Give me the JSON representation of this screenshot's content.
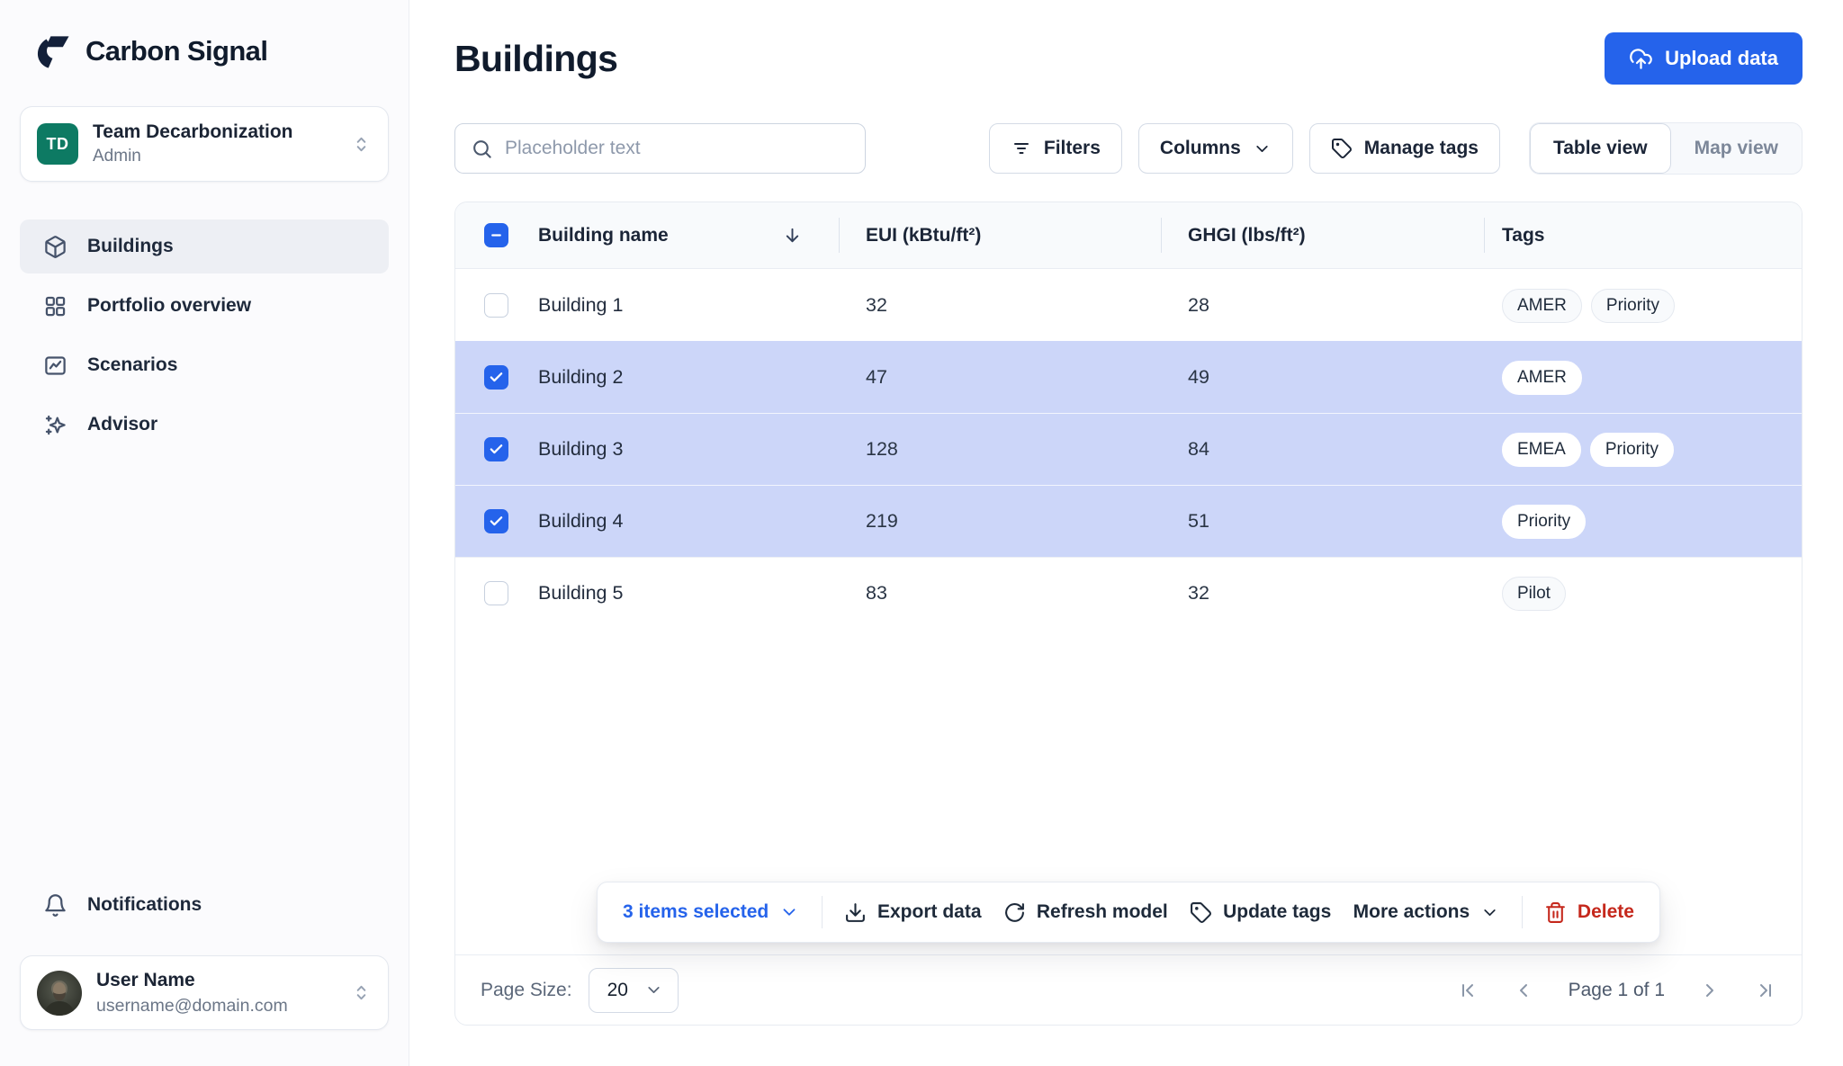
{
  "app": {
    "name": "Carbon Signal",
    "logo_icon": "carbon-signal-mark"
  },
  "sidebar": {
    "team": {
      "initials": "TD",
      "name": "Team Decarbonization",
      "role": "Admin",
      "chevron_icon": "chevrons-up-down"
    },
    "items": [
      {
        "label": "Buildings",
        "icon": "cube",
        "active": true
      },
      {
        "label": "Portfolio overview",
        "icon": "grid",
        "active": false
      },
      {
        "label": "Scenarios",
        "icon": "chart-square",
        "active": false
      },
      {
        "label": "Advisor",
        "icon": "sparkles",
        "active": false
      }
    ],
    "notifications": {
      "label": "Notifications",
      "icon": "bell"
    },
    "user": {
      "name": "User Name",
      "email": "username@domain.com",
      "chevron_icon": "chevrons-up-down"
    }
  },
  "header": {
    "title": "Buildings",
    "upload_button": "Upload data",
    "upload_icon": "cloud-upload"
  },
  "toolbar": {
    "search": {
      "placeholder": "Placeholder text",
      "icon": "search"
    },
    "filters_label": "Filters",
    "columns_label": "Columns",
    "manage_tags_label": "Manage tags",
    "view_toggle": {
      "table_label": "Table view",
      "map_label": "Map view",
      "active": "table"
    }
  },
  "table": {
    "columns": {
      "name": "Building name",
      "eui": "EUI (kBtu/ft²)",
      "ghgi": "GHGI (lbs/ft²)",
      "tags": "Tags"
    },
    "sort": {
      "column": "Building name",
      "direction": "desc"
    },
    "header_checkbox_state": "indeterminate",
    "rows": [
      {
        "name": "Building 1",
        "eui": "32",
        "ghgi": "28",
        "tags": [
          "AMER",
          "Priority"
        ],
        "selected": false
      },
      {
        "name": "Building 2",
        "eui": "47",
        "ghgi": "49",
        "tags": [
          "AMER"
        ],
        "selected": true
      },
      {
        "name": "Building 3",
        "eui": "128",
        "ghgi": "84",
        "tags": [
          "EMEA",
          "Priority"
        ],
        "selected": true
      },
      {
        "name": "Building 4",
        "eui": "219",
        "ghgi": "51",
        "tags": [
          "Priority"
        ],
        "selected": true
      },
      {
        "name": "Building 5",
        "eui": "83",
        "ghgi": "32",
        "tags": [
          "Pilot"
        ],
        "selected": false
      }
    ]
  },
  "action_bar": {
    "selected_label": "3 items selected",
    "export_label": "Export data",
    "refresh_label": "Refresh model",
    "update_tags_label": "Update tags",
    "more_actions_label": "More actions",
    "delete_label": "Delete"
  },
  "pagination": {
    "page_size_label": "Page Size:",
    "page_size": "20",
    "page_info": "Page 1 of 1"
  },
  "colors": {
    "accent": "#2563eb",
    "selected_row": "#ccd6f9",
    "danger": "#c5281c",
    "team_avatar": "#0d7a63",
    "header_bg": "#f8fafc"
  }
}
